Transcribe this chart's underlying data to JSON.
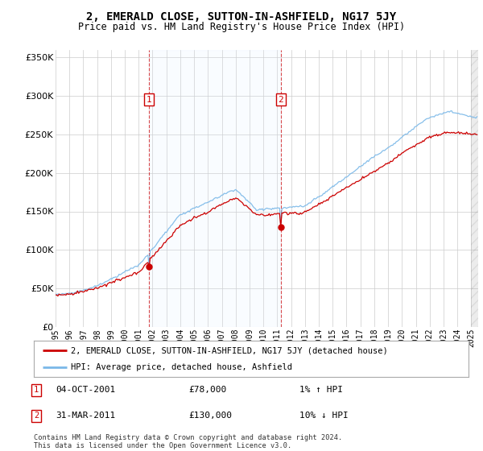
{
  "title": "2, EMERALD CLOSE, SUTTON-IN-ASHFIELD, NG17 5JY",
  "subtitle": "Price paid vs. HM Land Registry's House Price Index (HPI)",
  "sale1_label": "04-OCT-2001",
  "sale1_price": 78000,
  "sale1_hpi_text": "1% ↑ HPI",
  "sale2_label": "31-MAR-2011",
  "sale2_price": 130000,
  "sale2_hpi_text": "10% ↓ HPI",
  "legend_line1": "2, EMERALD CLOSE, SUTTON-IN-ASHFIELD, NG17 5JY (detached house)",
  "legend_line2": "HPI: Average price, detached house, Ashfield",
  "footer1": "Contains HM Land Registry data © Crown copyright and database right 2024.",
  "footer2": "This data is licensed under the Open Government Licence v3.0.",
  "hpi_color": "#7ab8e8",
  "price_color": "#cc0000",
  "shade_color": "#ddeeff",
  "background_color": "#ffffff",
  "grid_color": "#cccccc",
  "ylim": [
    0,
    360000
  ],
  "yticks": [
    0,
    50000,
    100000,
    150000,
    200000,
    250000,
    300000,
    350000
  ],
  "xlim_start": 1995.25,
  "xlim_end": 2025.5,
  "sale1_x": 2001.75,
  "sale2_x": 2011.25
}
